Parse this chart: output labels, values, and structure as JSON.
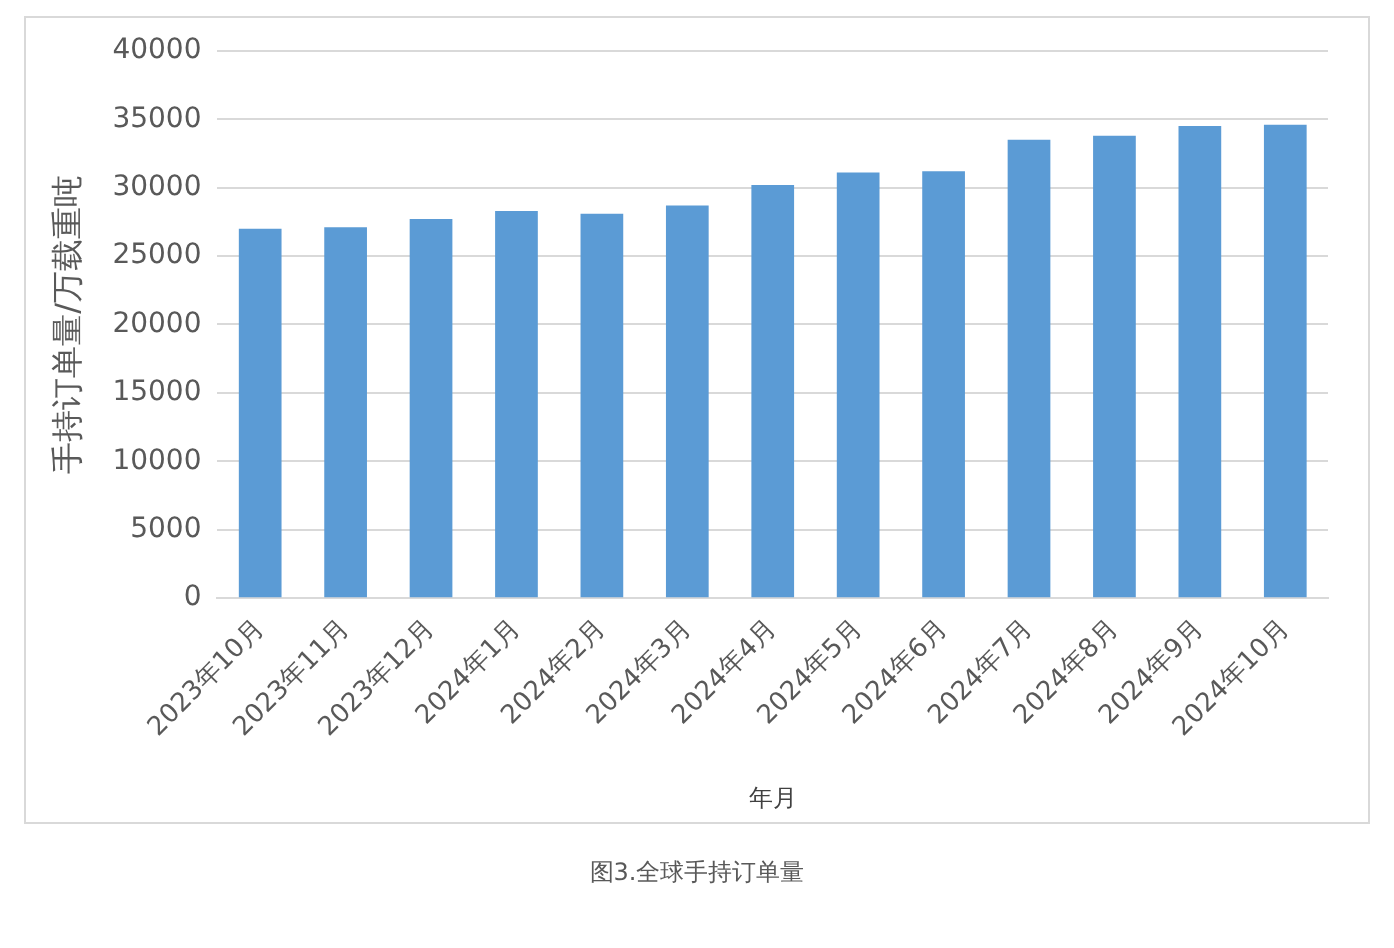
{
  "chart_data": {
    "type": "bar",
    "xlabel": "年月",
    "ylabel": "手持订单量/万载重吨",
    "categories": [
      "2023年10月",
      "2023年11月",
      "2023年12月",
      "2024年1月",
      "2024年2月",
      "2024年3月",
      "2024年4月",
      "2024年5月",
      "2024年6月",
      "2024年7月",
      "2024年8月",
      "2024年9月",
      "2024年10月"
    ],
    "values": [
      27000,
      27100,
      27700,
      28300,
      28100,
      28700,
      30200,
      31100,
      31200,
      33500,
      33800,
      34500,
      34600
    ],
    "color": "#5b9bd5",
    "ylim": [
      0,
      40000
    ],
    "yticks": [
      0,
      5000,
      10000,
      15000,
      20000,
      25000,
      30000,
      35000,
      40000
    ],
    "grid": "y",
    "annotations": [
      "图3.全球手持订单量"
    ]
  }
}
